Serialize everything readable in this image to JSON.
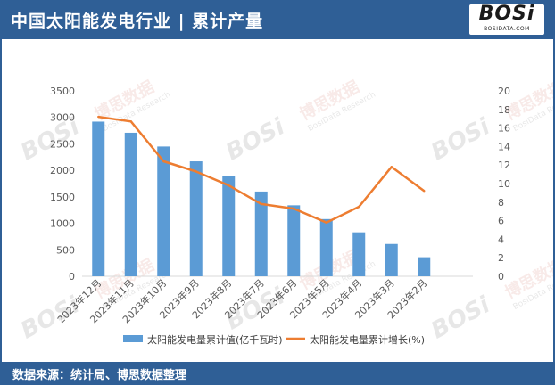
{
  "header": {
    "title": "中国太阳能发电行业 | 累计产量",
    "logo_text": "BOSi",
    "logo_sub": "BOSIDATA.COM"
  },
  "footer": {
    "source": "数据来源：统计局、博思数据整理"
  },
  "watermark": {
    "brand": "BOSi",
    "cn": "博思数据",
    "en": "BosiData Research",
    "site": "BOSIDATA.COM"
  },
  "colors": {
    "header_bg": "#2f5f96",
    "bar": "#5b9bd5",
    "line": "#ed7d31"
  },
  "chart_data": {
    "type": "bar",
    "categories": [
      "2023年12月",
      "2023年11月",
      "2023年10月",
      "2023年9月",
      "2023年8月",
      "2023年7月",
      "2023年6月",
      "2023年5月",
      "2023年4月",
      "2023年3月",
      "2023年2月",
      ""
    ],
    "series": [
      {
        "name": "太阳能发电量累计值(亿千瓦时)",
        "type": "bar",
        "axis": "left",
        "values": [
          2920,
          2710,
          2450,
          2170,
          1900,
          1600,
          1340,
          1080,
          830,
          610,
          360,
          null
        ]
      },
      {
        "name": "太阳能发电量累计增长(%)",
        "type": "line",
        "axis": "right",
        "values": [
          17.2,
          16.7,
          12.4,
          11.3,
          9.8,
          7.8,
          7.3,
          5.8,
          7.5,
          11.8,
          9.2,
          null
        ]
      }
    ],
    "y_left": {
      "min": 0,
      "max": 3500,
      "ticks": [
        0,
        500,
        1000,
        1500,
        2000,
        2500,
        3000,
        3500
      ]
    },
    "y_right": {
      "min": 0,
      "max": 20,
      "ticks": [
        0,
        2,
        4,
        6,
        8,
        10,
        12,
        14,
        16,
        18,
        20
      ]
    },
    "grid": false,
    "legend_position": "bottom"
  }
}
